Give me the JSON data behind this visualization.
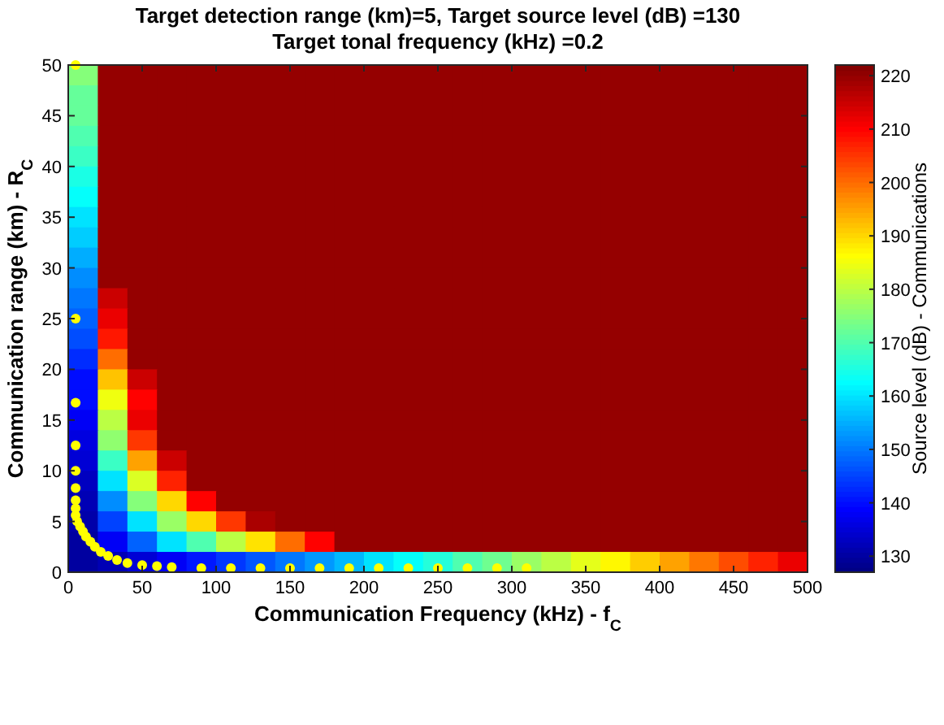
{
  "chart_data": {
    "type": "heatmap",
    "title": "Target detection range (km)=5, Target source level (dB) =130",
    "subtitle": "Target tonal frequency (kHz) =0.2",
    "xlabel": "Communication Frequency (kHz) - f$_{C}$",
    "ylabel": "Communication range (km) - R$_{C}$",
    "clabel": "Source level (dB) - Communications",
    "xlim": [
      0,
      500
    ],
    "xticks": [
      0,
      50,
      100,
      150,
      200,
      250,
      300,
      350,
      400,
      450,
      500
    ],
    "ylim": [
      0,
      50
    ],
    "yticks": [
      0,
      5,
      10,
      15,
      20,
      25,
      30,
      35,
      40,
      45,
      50
    ],
    "clim": [
      127,
      222
    ],
    "cticks": [
      130,
      140,
      150,
      160,
      170,
      180,
      190,
      200,
      210,
      220
    ],
    "cells": [
      [
        175,
        220,
        220,
        220,
        220,
        220,
        220,
        220,
        220,
        220,
        220,
        220,
        220,
        220,
        220,
        220,
        220,
        220,
        220,
        220,
        220,
        220,
        220,
        220,
        220
      ],
      [
        172,
        220,
        220,
        220,
        220,
        220,
        220,
        220,
        220,
        220,
        220,
        220,
        220,
        220,
        220,
        220,
        220,
        220,
        220,
        220,
        220,
        220,
        220,
        220,
        220
      ],
      [
        172,
        220,
        220,
        220,
        220,
        220,
        220,
        220,
        220,
        220,
        220,
        220,
        220,
        220,
        220,
        220,
        220,
        220,
        220,
        220,
        220,
        220,
        220,
        220,
        220
      ],
      [
        170,
        220,
        220,
        220,
        220,
        220,
        220,
        220,
        220,
        220,
        220,
        220,
        220,
        220,
        220,
        220,
        220,
        220,
        220,
        220,
        220,
        220,
        220,
        220,
        220
      ],
      [
        168,
        220,
        220,
        220,
        220,
        220,
        220,
        220,
        220,
        220,
        220,
        220,
        220,
        220,
        220,
        220,
        220,
        220,
        220,
        220,
        220,
        220,
        220,
        220,
        220
      ],
      [
        165,
        220,
        220,
        220,
        220,
        220,
        220,
        220,
        220,
        220,
        220,
        220,
        220,
        220,
        220,
        220,
        220,
        220,
        220,
        220,
        220,
        220,
        220,
        220,
        220
      ],
      [
        163,
        220,
        220,
        220,
        220,
        220,
        220,
        220,
        220,
        220,
        220,
        220,
        220,
        220,
        220,
        220,
        220,
        220,
        220,
        220,
        220,
        220,
        220,
        220,
        220
      ],
      [
        160,
        220,
        220,
        220,
        220,
        220,
        220,
        220,
        220,
        220,
        220,
        220,
        220,
        220,
        220,
        220,
        220,
        220,
        220,
        220,
        220,
        220,
        220,
        220,
        220
      ],
      [
        158,
        220,
        220,
        220,
        220,
        220,
        220,
        220,
        220,
        220,
        220,
        220,
        220,
        220,
        220,
        220,
        220,
        220,
        220,
        220,
        220,
        220,
        220,
        220,
        220
      ],
      [
        155,
        220,
        220,
        220,
        220,
        220,
        220,
        220,
        220,
        220,
        220,
        220,
        220,
        220,
        220,
        220,
        220,
        220,
        220,
        220,
        220,
        220,
        220,
        220,
        220
      ],
      [
        152,
        220,
        220,
        220,
        220,
        220,
        220,
        220,
        220,
        220,
        220,
        220,
        220,
        220,
        220,
        220,
        220,
        220,
        220,
        220,
        220,
        220,
        220,
        220,
        220
      ],
      [
        150,
        215,
        220,
        220,
        220,
        220,
        220,
        220,
        220,
        220,
        220,
        220,
        220,
        220,
        220,
        220,
        220,
        220,
        220,
        220,
        220,
        220,
        220,
        220,
        220
      ],
      [
        148,
        212,
        220,
        220,
        220,
        220,
        220,
        220,
        220,
        220,
        220,
        220,
        220,
        220,
        220,
        220,
        220,
        220,
        220,
        220,
        220,
        220,
        220,
        220,
        220
      ],
      [
        146,
        208,
        220,
        220,
        220,
        220,
        220,
        220,
        220,
        220,
        220,
        220,
        220,
        220,
        220,
        220,
        220,
        220,
        220,
        220,
        220,
        220,
        220,
        220,
        220
      ],
      [
        143,
        200,
        220,
        220,
        220,
        220,
        220,
        220,
        220,
        220,
        220,
        220,
        220,
        220,
        220,
        220,
        220,
        220,
        220,
        220,
        220,
        220,
        220,
        220,
        220
      ],
      [
        140,
        192,
        215,
        220,
        220,
        220,
        220,
        220,
        220,
        220,
        220,
        220,
        220,
        220,
        220,
        220,
        220,
        220,
        220,
        220,
        220,
        220,
        220,
        220,
        220
      ],
      [
        140,
        185,
        210,
        220,
        220,
        220,
        220,
        220,
        220,
        220,
        220,
        220,
        220,
        220,
        220,
        220,
        220,
        220,
        220,
        220,
        220,
        220,
        220,
        220,
        220
      ],
      [
        138,
        180,
        212,
        220,
        220,
        220,
        220,
        220,
        220,
        220,
        220,
        220,
        220,
        220,
        220,
        220,
        220,
        220,
        220,
        220,
        220,
        220,
        220,
        220,
        220
      ],
      [
        136,
        176,
        205,
        220,
        220,
        220,
        220,
        220,
        220,
        220,
        220,
        220,
        220,
        220,
        220,
        220,
        220,
        220,
        220,
        220,
        220,
        220,
        220,
        220,
        220
      ],
      [
        135,
        168,
        195,
        215,
        220,
        220,
        220,
        220,
        220,
        220,
        220,
        220,
        220,
        220,
        220,
        220,
        220,
        220,
        220,
        220,
        220,
        220,
        220,
        220,
        220
      ],
      [
        133,
        160,
        183,
        207,
        220,
        220,
        220,
        220,
        220,
        220,
        220,
        220,
        220,
        220,
        220,
        220,
        220,
        220,
        220,
        220,
        220,
        220,
        220,
        220,
        220
      ],
      [
        132,
        152,
        175,
        190,
        210,
        220,
        220,
        220,
        220,
        220,
        220,
        220,
        220,
        220,
        220,
        220,
        220,
        220,
        220,
        220,
        220,
        220,
        220,
        220,
        220
      ],
      [
        131,
        145,
        160,
        177,
        190,
        205,
        218,
        220,
        220,
        220,
        220,
        220,
        220,
        220,
        220,
        220,
        220,
        220,
        220,
        220,
        220,
        220,
        220,
        220,
        220
      ],
      [
        130,
        138,
        148,
        160,
        170,
        180,
        189,
        200,
        210,
        220,
        220,
        220,
        220,
        220,
        220,
        220,
        220,
        220,
        220,
        220,
        220,
        220,
        220,
        220,
        220
      ],
      [
        130,
        132,
        135,
        138,
        141,
        144,
        147,
        150,
        153,
        156,
        160,
        163,
        166,
        170,
        173,
        177,
        180,
        184,
        187,
        191,
        195,
        199,
        203,
        207,
        212
      ]
    ],
    "series": [
      {
        "type": "scatter",
        "color": "#ffff00",
        "x": [
          5,
          5,
          5,
          5,
          5,
          5,
          5,
          5,
          5,
          6,
          8,
          10,
          12,
          15,
          18,
          22,
          27,
          33,
          40,
          50,
          60,
          70,
          90,
          110,
          130,
          150,
          170,
          190,
          210,
          230,
          250,
          270,
          290,
          310
        ],
        "values": [
          50,
          25,
          16.7,
          12.5,
          10,
          8.3,
          7.1,
          6.3,
          5.6,
          5,
          4.5,
          4,
          3.5,
          3,
          2.5,
          2,
          1.6,
          1.2,
          0.9,
          0.7,
          0.6,
          0.5,
          0.4,
          0.4,
          0.4,
          0.4,
          0.4,
          0.4,
          0.4,
          0.4,
          0.4,
          0.4,
          0.4,
          0.4
        ]
      }
    ],
    "marker": "circle"
  }
}
